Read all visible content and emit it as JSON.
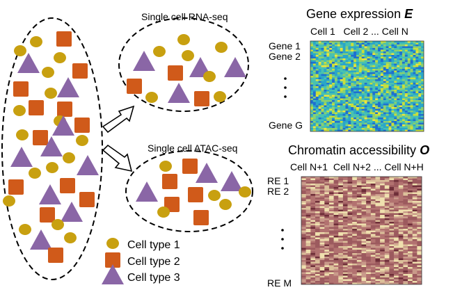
{
  "labels": {
    "rna_seq": "Single cell  RNA-seq",
    "atac_seq": "Single cell ATAC-seq",
    "gene_expression_title": "Gene expression ",
    "gene_expression_symbol": "E",
    "chromatin_title": "Chromatin accessibility ",
    "chromatin_symbol": "O",
    "gene_columns": "Cell 1   Cell 2 ... Cell N",
    "re_columns": "Cell N+1  Cell N+2 ... Cell N+H",
    "gene_1": "Gene 1",
    "gene_2": "Gene 2",
    "gene_g": "Gene G",
    "re_1": "RE 1",
    "re_2": "RE 2",
    "re_m": "RE M"
  },
  "legend": [
    {
      "shape": "circle",
      "label": "Cell type 1"
    },
    {
      "shape": "square",
      "label": "Cell type 2"
    },
    {
      "shape": "triangle",
      "label": "Cell type 3"
    }
  ],
  "colors": {
    "cell_type_1": "#C8A010",
    "cell_type_2": "#D05A1A",
    "cell_type_3": "#8A66A6",
    "gene_heatmap": [
      "#1f6fd0",
      "#2aa6c8",
      "#49c1b0",
      "#8ad070",
      "#c9df3a",
      "#f0e53a"
    ],
    "chromatin_heatmap": [
      "#9c5a5e",
      "#b27270",
      "#c99a8a",
      "#dcc09a",
      "#efe0ae",
      "#6e2e38"
    ]
  }
}
